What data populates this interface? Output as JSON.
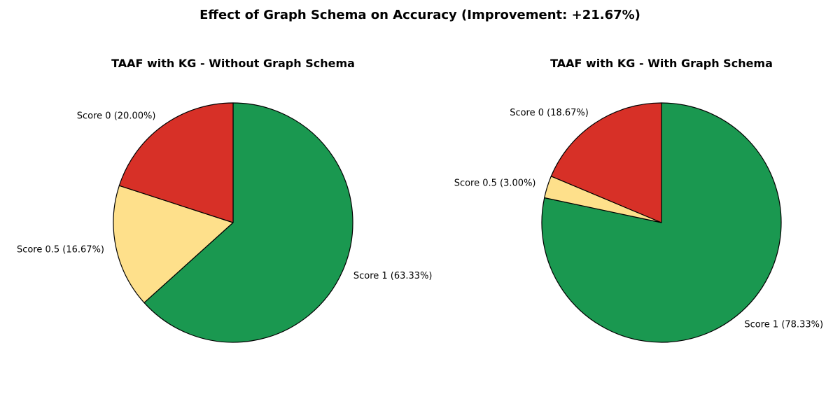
{
  "figure": {
    "title": "Effect of Graph Schema on Accuracy (Improvement: +21.67%)"
  },
  "chart_data": [
    {
      "type": "pie",
      "title": "TAAF with KG - Without Graph Schema",
      "start_angle_deg": 90,
      "direction": "clockwise",
      "slices": [
        {
          "label": "Score 1 (63.33%)",
          "value": 63.33,
          "color": "#1a9850"
        },
        {
          "label": "Score 0.5 (16.67%)",
          "value": 16.67,
          "color": "#fee08b"
        },
        {
          "label": "Score 0 (20.00%)",
          "value": 20.0,
          "color": "#d73027"
        }
      ]
    },
    {
      "type": "pie",
      "title": "TAAF with KG - With Graph Schema",
      "start_angle_deg": 90,
      "direction": "clockwise",
      "slices": [
        {
          "label": "Score 1 (78.33%)",
          "value": 78.33,
          "color": "#1a9850"
        },
        {
          "label": "Score 0.5 (3.00%)",
          "value": 3.0,
          "color": "#fee08b"
        },
        {
          "label": "Score 0 (18.67%)",
          "value": 18.67,
          "color": "#d73027"
        }
      ]
    }
  ]
}
